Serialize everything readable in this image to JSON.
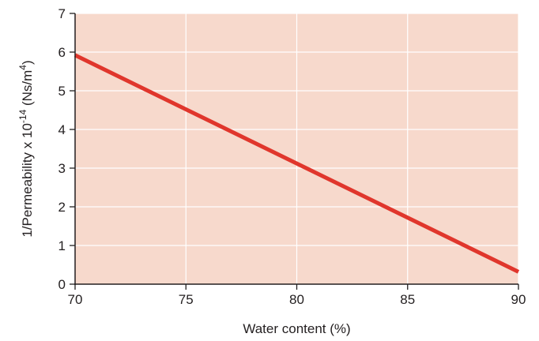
{
  "chart_data": {
    "type": "line",
    "xlabel": "Water content (%)",
    "ylabel": {
      "prefix": "1/Permeability x 10",
      "exponent": "-14",
      "unit_open": " (Ns/m",
      "unit_exponent": "4",
      "unit_close": ")"
    },
    "xlim": [
      70,
      90
    ],
    "ylim": [
      0,
      7
    ],
    "x_ticks": [
      "70",
      "75",
      "80",
      "85",
      "90"
    ],
    "y_ticks": [
      "0",
      "1",
      "2",
      "3",
      "4",
      "5",
      "6",
      "7"
    ],
    "grid": true,
    "series": [
      {
        "x": [
          70,
          90
        ],
        "y": [
          5.92,
          0.32
        ]
      }
    ],
    "colors": {
      "plot_background": "#f7d9cc",
      "grid": "#ffffff",
      "line": "#e0362c",
      "axis": "#231f20"
    }
  }
}
